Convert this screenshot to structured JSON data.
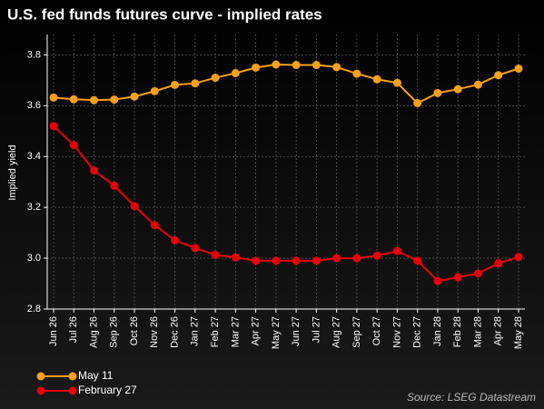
{
  "chart_data": {
    "type": "line",
    "title": "U.S. fed funds futures curve - implied rates",
    "y_label": "Implied yield",
    "source": "Source: LSEG Datastream",
    "categories": [
      "Jun 26",
      "Jul 26",
      "Aug 26",
      "Sep 26",
      "Oct 26",
      "Nov 26",
      "Dec 26",
      "Jan 27",
      "Feb 27",
      "Mar 27",
      "Apr 27",
      "May 27",
      "Jun 27",
      "Jul 27",
      "Aug 27",
      "Sep 27",
      "Oct 27",
      "Nov 27",
      "Dec 27",
      "Jan 28",
      "Feb 28",
      "Mar 28",
      "Apr 28",
      "May 28"
    ],
    "series": [
      {
        "name": "May 11",
        "color": "#f7a01c",
        "values": [
          3.632,
          3.625,
          3.622,
          3.624,
          3.636,
          3.657,
          3.682,
          3.688,
          3.71,
          3.728,
          3.75,
          3.762,
          3.76,
          3.76,
          3.752,
          3.726,
          3.704,
          3.69,
          3.61,
          3.65,
          3.665,
          3.683,
          3.72,
          3.746
        ]
      },
      {
        "name": "February 27",
        "color": "#e8000b",
        "values": [
          3.52,
          3.445,
          3.345,
          3.285,
          3.205,
          3.13,
          3.07,
          3.04,
          3.013,
          3.003,
          2.99,
          2.99,
          2.99,
          2.99,
          3.0,
          3.0,
          3.01,
          3.028,
          2.99,
          2.91,
          2.925,
          2.94,
          2.98,
          3.005
        ]
      }
    ],
    "ylim": [
      2.8,
      3.88
    ],
    "yticks": [
      2.8,
      {
        "value": 3,
        "label": "3.0"
      },
      3.2,
      3.4,
      3.6,
      3.8
    ],
    "grid": true,
    "legend": "bottom-left"
  }
}
